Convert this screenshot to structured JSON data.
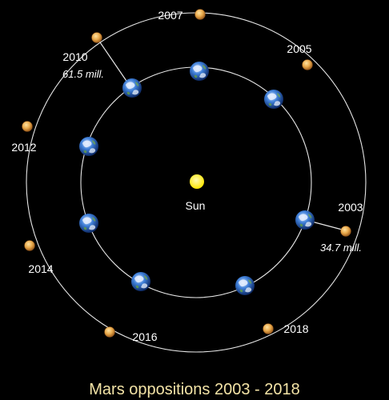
{
  "title": "Mars oppositions 2003 - 2018",
  "sun_label": "Sun",
  "years": {
    "y2003": "2003",
    "y2005": "2005",
    "y2007": "2007",
    "y2010": "2010",
    "y2012": "2012",
    "y2014": "2014",
    "y2016": "2016",
    "y2018": "2018"
  },
  "distances": {
    "d2003": "34.7 mill.",
    "d2010": "61.5 mill."
  },
  "colors": {
    "background": "#000000",
    "orbit": "#e6e6e6",
    "sun": "#ffee00",
    "mars": "#e8a84a",
    "earth_ocean": "#2f6fd0",
    "title": "#f3e3a6"
  }
}
